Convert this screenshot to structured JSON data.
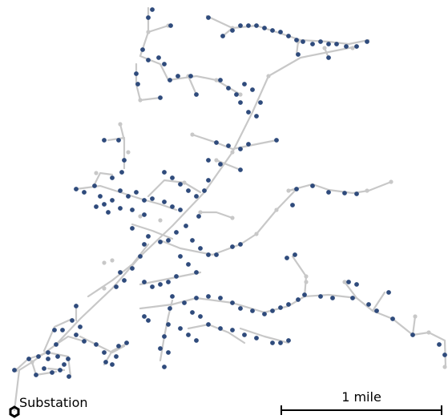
{
  "labels": {
    "substation": "Substation",
    "scale": "1 mile"
  },
  "colors": {
    "background": "#ffffff",
    "line": "#c8c8c8",
    "node": "#2f4b7c",
    "junction": "#c8c8c8",
    "substation_marker": "#000000",
    "scale_bar": "#000000"
  },
  "icons": {
    "substation_marker": "hexagon-outline-icon"
  }
}
